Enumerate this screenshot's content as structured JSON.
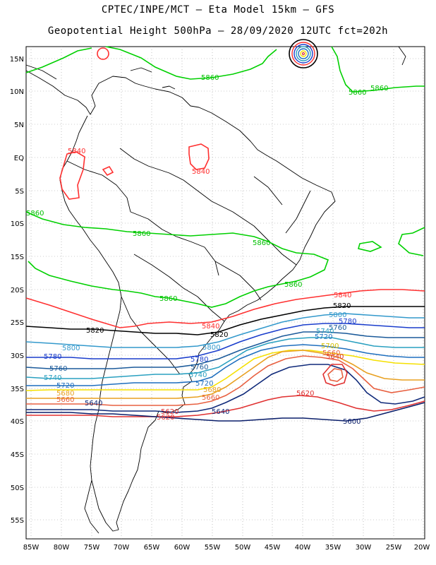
{
  "title_line1": "CPTEC/INPE/MCT  –  Eta Model 15km  –  GFS",
  "title_line2": "Geopotential Height 500hPa  –  28/09/2020 12UTC fct=202h",
  "lat_labels": [
    "15N",
    "10N",
    "5N",
    "EQ",
    "5S",
    "10S",
    "15S",
    "20S",
    "25S",
    "30S",
    "35S",
    "40S",
    "45S",
    "50S",
    "55S"
  ],
  "lon_labels": [
    "85W",
    "80W",
    "75W",
    "70W",
    "65W",
    "60W",
    "55W",
    "50W",
    "45W",
    "40W",
    "35W",
    "30W",
    "25W",
    "20W"
  ],
  "contours": [
    {
      "value": "5860",
      "color": "#00d000"
    },
    {
      "value": "5840",
      "color": "#ff3030"
    },
    {
      "value": "5820",
      "color": "#000000"
    },
    {
      "value": "5800",
      "color": "#3399cc"
    },
    {
      "value": "5780",
      "color": "#1a3dcc"
    },
    {
      "value": "5760",
      "color": "#1b5a9a"
    },
    {
      "value": "5740",
      "color": "#2aa0c0"
    },
    {
      "value": "5720",
      "color": "#1f6fbf"
    },
    {
      "value": "5700",
      "color": "#f5e000"
    },
    {
      "value": "5680",
      "color": "#e8a020"
    },
    {
      "value": "5660",
      "color": "#e86040"
    },
    {
      "value": "5640",
      "color": "#102a7a"
    },
    {
      "value": "5620",
      "color": "#e03030"
    },
    {
      "value": "5600",
      "color": "#0a1e6a"
    }
  ],
  "contour_labels": [
    {
      "text": "5860",
      "color": "#00c000"
    },
    {
      "text": "5860",
      "color": "#00c000"
    },
    {
      "text": "5860",
      "color": "#00c000"
    },
    {
      "text": "5860",
      "color": "#00c000"
    },
    {
      "text": "5860",
      "color": "#00c000"
    },
    {
      "text": "5860",
      "color": "#00c000"
    },
    {
      "text": "5860",
      "color": "#00c000"
    },
    {
      "text": "5860",
      "color": "#00c000"
    },
    {
      "text": "5840",
      "color": "#ff3030"
    },
    {
      "text": "5840",
      "color": "#ff3030"
    },
    {
      "text": "5840",
      "color": "#ff3030"
    },
    {
      "text": "5840",
      "color": "#ff3030"
    },
    {
      "text": "5820",
      "color": "#000000"
    },
    {
      "text": "5820",
      "color": "#000000"
    },
    {
      "text": "5820",
      "color": "#000000"
    },
    {
      "text": "5800",
      "color": "#3399cc"
    },
    {
      "text": "5800",
      "color": "#3399cc"
    },
    {
      "text": "5800",
      "color": "#3399cc"
    },
    {
      "text": "5780",
      "color": "#1a3dcc"
    },
    {
      "text": "5780",
      "color": "#1a3dcc"
    },
    {
      "text": "5780",
      "color": "#1a3dcc"
    },
    {
      "text": "5760",
      "color": "#1b5a9a"
    },
    {
      "text": "5760",
      "color": "#1b5a9a"
    },
    {
      "text": "5760",
      "color": "#1b5a9a"
    },
    {
      "text": "5740",
      "color": "#2aa0c0"
    },
    {
      "text": "5740",
      "color": "#2aa0c0"
    },
    {
      "text": "5740",
      "color": "#2aa0c0"
    },
    {
      "text": "5720",
      "color": "#1f6fbf"
    },
    {
      "text": "5720",
      "color": "#1f6fbf"
    },
    {
      "text": "5720",
      "color": "#1f6fbf"
    },
    {
      "text": "5700",
      "color": "#d4c000"
    },
    {
      "text": "5680",
      "color": "#e8a020"
    },
    {
      "text": "5680",
      "color": "#e8a020"
    },
    {
      "text": "5660",
      "color": "#e86040"
    },
    {
      "text": "5660",
      "color": "#e86040"
    },
    {
      "text": "5640",
      "color": "#102a7a"
    },
    {
      "text": "5640",
      "color": "#102a7a"
    },
    {
      "text": "5620",
      "color": "#e03030"
    },
    {
      "text": "5620",
      "color": "#e03030"
    },
    {
      "text": "5620",
      "color": "#e03030"
    },
    {
      "text": "5600",
      "color": "#0a1e6a"
    },
    {
      "text": "5640",
      "color": "#e03030"
    },
    {
      "text": "5660",
      "color": "#e86040"
    }
  ]
}
